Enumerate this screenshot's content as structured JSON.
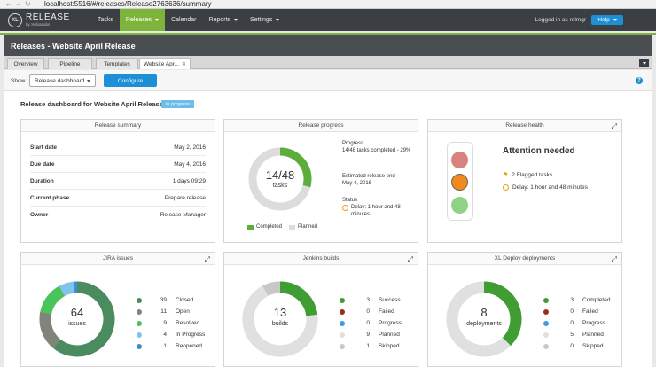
{
  "browser": {
    "url": "localhost:5516/#/releases/Release2763636/summary"
  },
  "app": {
    "logo_main": "RELEASE",
    "logo_sub": "by XebiaLabs",
    "logo_badge": "XL"
  },
  "nav": {
    "tasks": "Tasks",
    "releases": "Releases",
    "calendar": "Calendar",
    "reports": "Reports",
    "settings": "Settings",
    "logged_in": "Logged in as relmgr",
    "help": "Help"
  },
  "release": {
    "title": "Releases - Website April Release",
    "tabs": [
      "Overview",
      "Pipeline",
      "Templates",
      "Website Apr..."
    ]
  },
  "toolbar": {
    "show_label": "Show",
    "select_value": "Release dashboard",
    "configure": "Configure"
  },
  "dashboard": {
    "title": "Release dashboard for Website April Release",
    "status": "in progress"
  },
  "summary": {
    "title": "Release summary",
    "rows": [
      {
        "k": "Start date",
        "v": "May 2, 2016"
      },
      {
        "k": "Due date",
        "v": "May 4, 2016"
      },
      {
        "k": "Duration",
        "v": "1 days 09:29"
      },
      {
        "k": "Current phase",
        "v": "Prepare release"
      },
      {
        "k": "Owner",
        "v": "Release Manager"
      }
    ]
  },
  "progress": {
    "title": "Release progress",
    "fraction": "14/48",
    "unit": "tasks",
    "completed": 14,
    "total": 48,
    "progress_head": "Progress",
    "progress_text": "14/48 tasks completed - 29%",
    "end_head": "Estimated release end",
    "end_text": "May 4, 2016",
    "status_head": "Status",
    "status_text": "Delay: 1 hour and 48 minutes",
    "legend_completed": "Completed",
    "legend_planned": "Planned"
  },
  "health": {
    "title": "Release health",
    "heading": "Attention needed",
    "flagged": "2 Flagged tasks",
    "delay": "Delay: 1 hour and 48 minutes"
  },
  "jira": {
    "title": "JIRA issues",
    "total": "64",
    "unit": "issues",
    "items": [
      {
        "n": "39",
        "label": "Closed",
        "color": "#4a8c5f"
      },
      {
        "n": "11",
        "label": "Open",
        "color": "#808479"
      },
      {
        "n": "9",
        "label": "Resolved",
        "color": "#49c45a"
      },
      {
        "n": "4",
        "label": "In Progress",
        "color": "#7ec4ef"
      },
      {
        "n": "1",
        "label": "Reopened",
        "color": "#3a8fcf"
      }
    ]
  },
  "jenkins": {
    "title": "Jenkins builds",
    "total": "13",
    "unit": "builds",
    "items": [
      {
        "n": "3",
        "label": "Success",
        "color": "#3f9d34"
      },
      {
        "n": "0",
        "label": "Failed",
        "color": "#9b2d1f"
      },
      {
        "n": "0",
        "label": "Progress",
        "color": "#3d9be0"
      },
      {
        "n": "9",
        "label": "Planned",
        "color": "#e0e0e0"
      },
      {
        "n": "1",
        "label": "Skipped",
        "color": "#c8c8c8"
      }
    ]
  },
  "xldeploy": {
    "title": "XL Deploy deployments",
    "total": "8",
    "unit": "deployments",
    "items": [
      {
        "n": "3",
        "label": "Completed",
        "color": "#3f9d34"
      },
      {
        "n": "0",
        "label": "Failed",
        "color": "#9b2d1f"
      },
      {
        "n": "0",
        "label": "Progress",
        "color": "#3d9be0"
      },
      {
        "n": "5",
        "label": "Planned",
        "color": "#e0e0e0"
      },
      {
        "n": "0",
        "label": "Skipped",
        "color": "#c8c8c8"
      }
    ]
  },
  "colors": {
    "accent_green": "#7fb43c",
    "accent_blue": "#1c8fd6",
    "nav_dark": "#3b3f43"
  }
}
